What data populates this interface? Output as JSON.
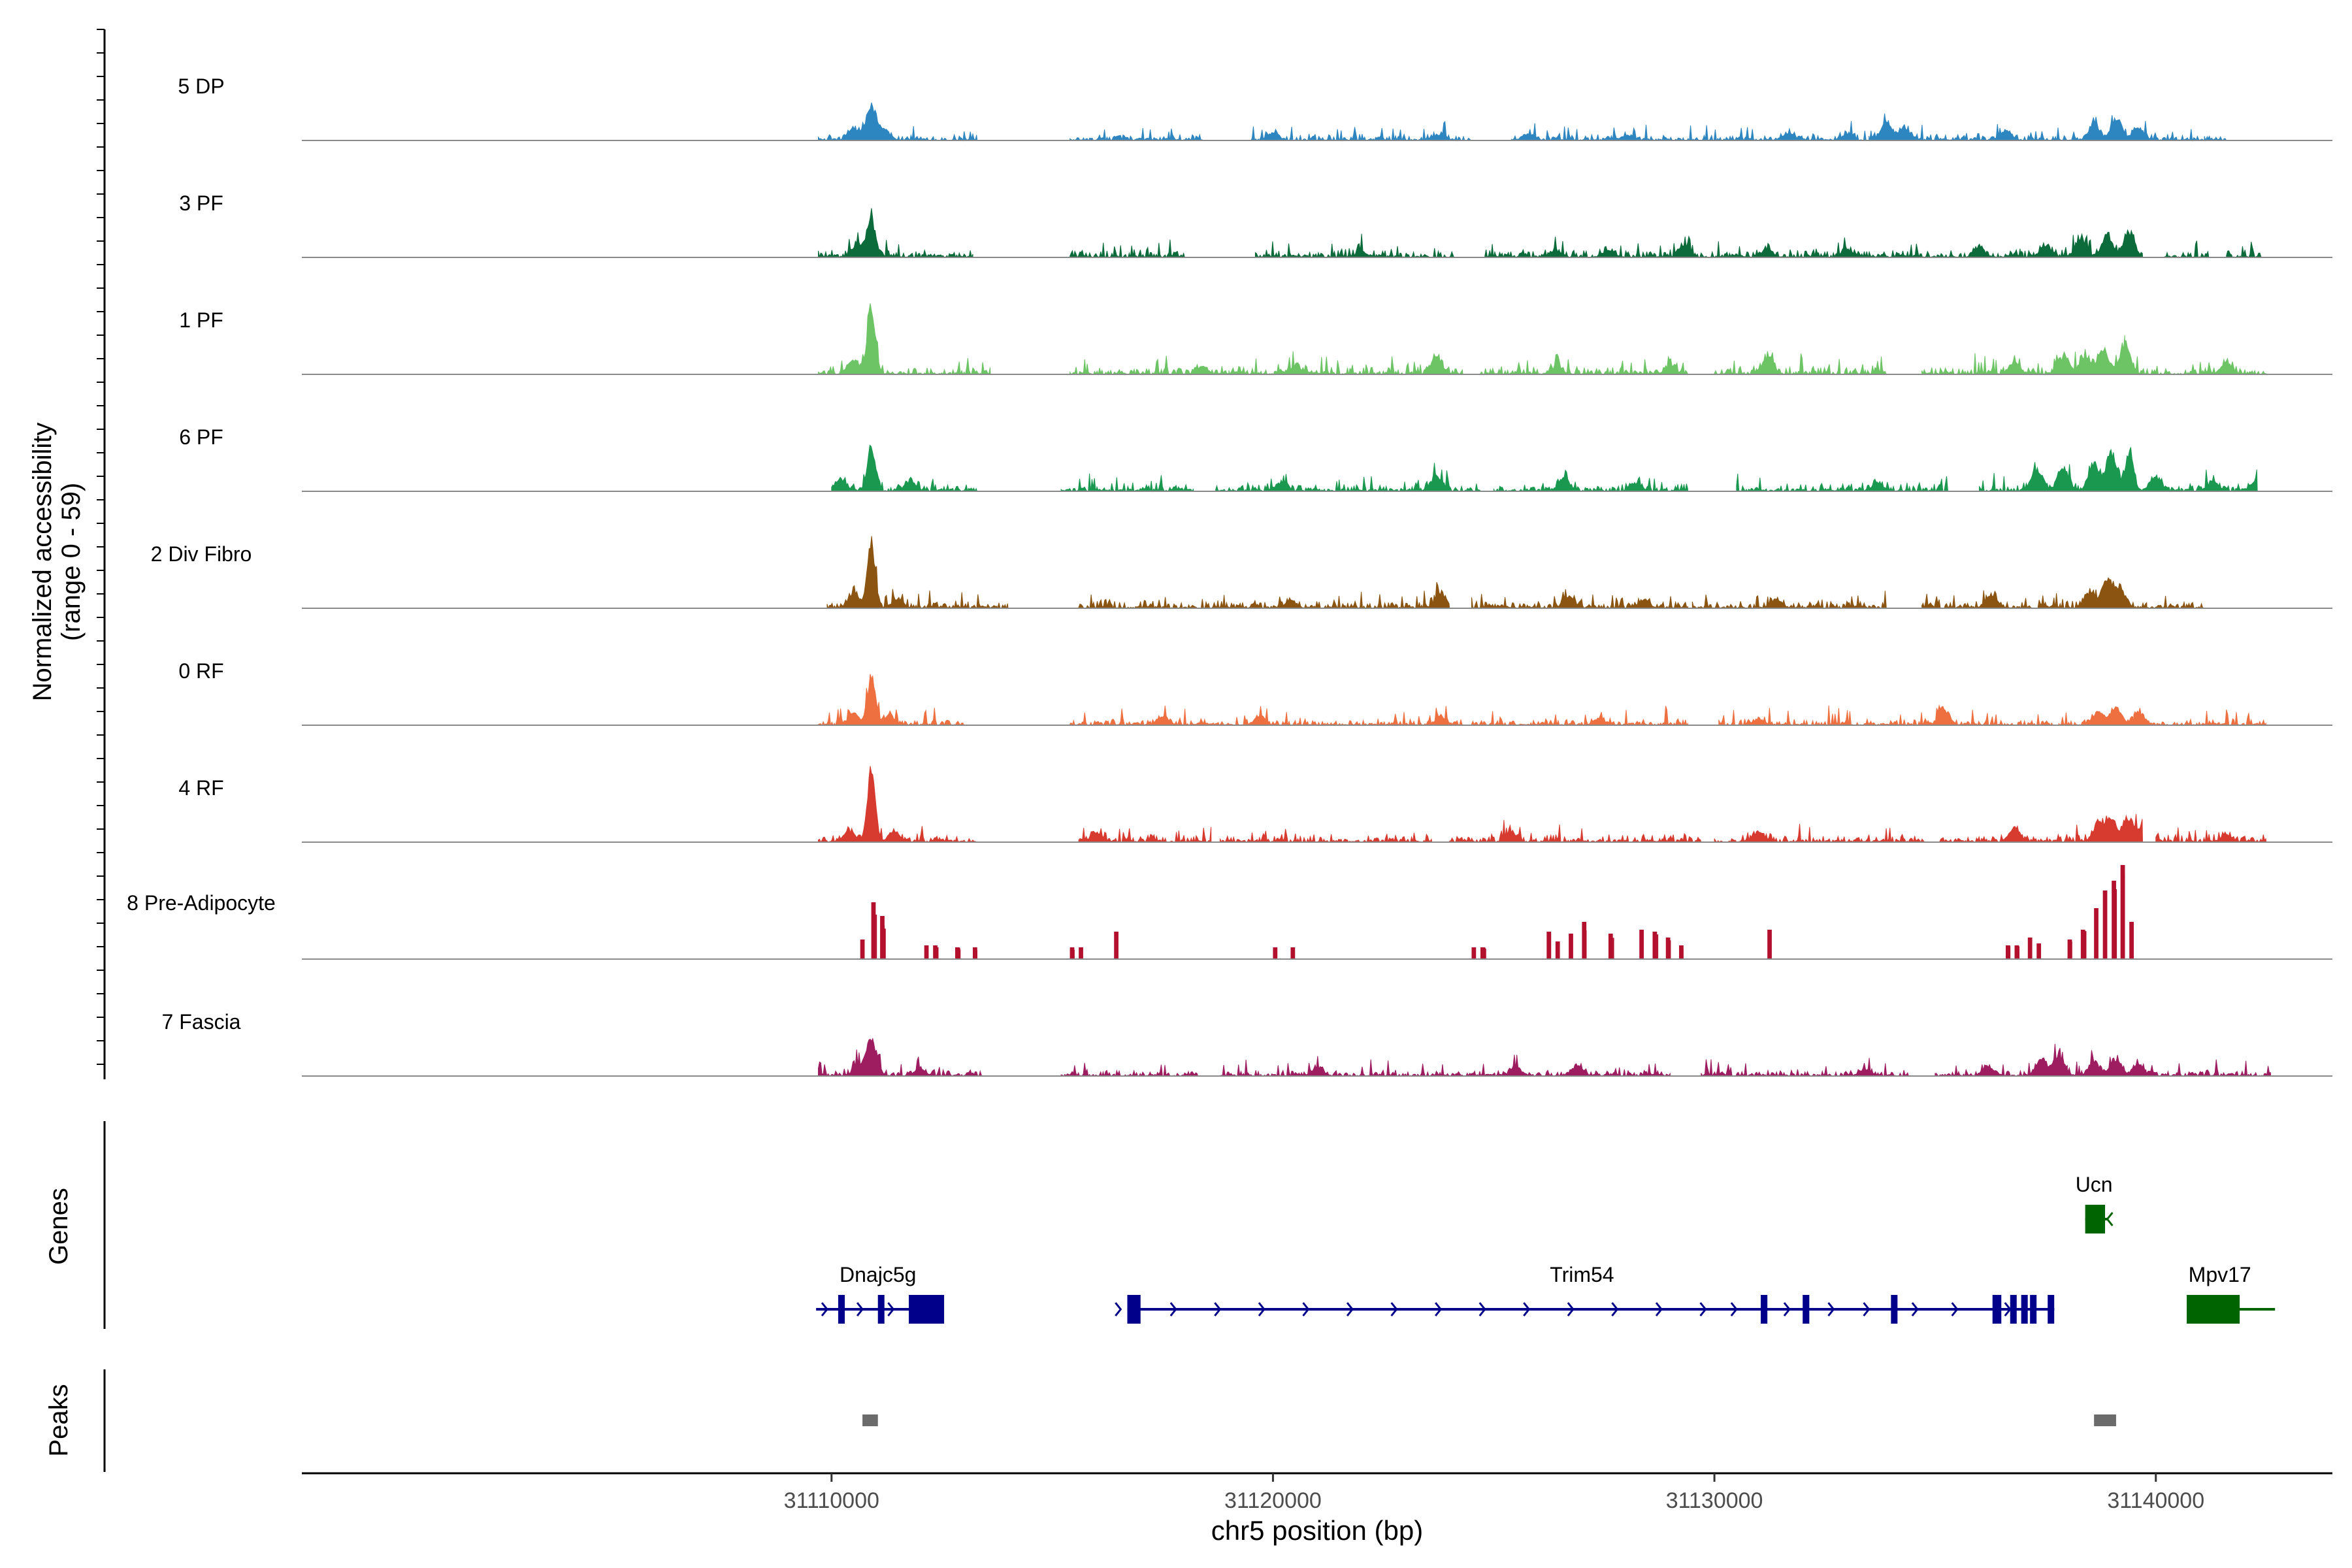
{
  "chart_data": {
    "type": "area",
    "title": "",
    "ylabel_line1": "Normalized accessibility",
    "ylabel_line2": "(range 0 - 59)",
    "xlabel": "chr5 position (bp)",
    "xlim": [
      31098000,
      31144000
    ],
    "ylim": [
      0,
      59
    ],
    "x_ticks": [
      31110000,
      31120000,
      31130000,
      31140000
    ],
    "x_tick_labels": [
      "31110000",
      "31120000",
      "31130000",
      "31140000"
    ],
    "genes_label": "Genes",
    "peaks_label": "Peaks",
    "series": [
      {
        "name": "5 DP",
        "color": "#2E86C1",
        "ranges": [
          [
            31109700,
            31113300
          ],
          [
            31115400,
            31118400
          ],
          [
            31119500,
            31124500
          ],
          [
            31125400,
            31134500
          ],
          [
            31133500,
            31138000
          ],
          [
            31138000,
            31141400
          ],
          [
            31141100,
            31141600
          ]
        ],
        "peaks": [
          [
            31110900,
            34
          ],
          [
            31110500,
            12
          ],
          [
            31111200,
            10
          ],
          [
            31133900,
            18
          ],
          [
            31134300,
            12
          ],
          [
            31136600,
            11
          ],
          [
            31138600,
            17
          ],
          [
            31139100,
            22
          ],
          [
            31139600,
            14
          ],
          [
            31120000,
            8
          ],
          [
            31125800,
            7
          ],
          [
            31131700,
            7
          ],
          [
            31133000,
            6
          ],
          [
            31123800,
            5
          ],
          [
            31128000,
            5
          ]
        ],
        "base": 4
      },
      {
        "name": "3 PF",
        "color": "#0B6B3A",
        "ranges": [
          [
            31109700,
            31113200
          ],
          [
            31115400,
            31118000
          ],
          [
            31119600,
            31124100
          ],
          [
            31124800,
            31134600
          ],
          [
            31134100,
            31137000
          ],
          [
            31136700,
            31139700
          ],
          [
            31140200,
            31141200
          ],
          [
            31141600,
            31142400
          ]
        ],
        "peaks": [
          [
            31110900,
            42
          ],
          [
            31110600,
            14
          ],
          [
            31129300,
            12
          ],
          [
            31133000,
            9
          ],
          [
            31136000,
            11
          ],
          [
            31137500,
            12
          ],
          [
            31138300,
            18
          ],
          [
            31138900,
            22
          ],
          [
            31139400,
            26
          ],
          [
            31131200,
            8
          ],
          [
            31126400,
            7
          ],
          [
            31122000,
            6
          ],
          [
            31127600,
            7
          ]
        ],
        "base": 5
      },
      {
        "name": "1 PF",
        "color": "#6CC465",
        "ranges": [
          [
            31109700,
            31113600
          ],
          [
            31115400,
            31119300
          ],
          [
            31119000,
            31124300
          ],
          [
            31124700,
            31129400
          ],
          [
            31130000,
            31133900
          ],
          [
            31134700,
            31137000
          ],
          [
            31137000,
            31139300
          ],
          [
            31139300,
            31142500
          ]
        ],
        "peaks": [
          [
            31110900,
            70
          ],
          [
            31110500,
            14
          ],
          [
            31123700,
            18
          ],
          [
            31131200,
            18
          ],
          [
            31136800,
            12
          ],
          [
            31137900,
            16
          ],
          [
            31138400,
            18
          ],
          [
            31138800,
            26
          ],
          [
            31139300,
            32
          ],
          [
            31141600,
            12
          ],
          [
            31118400,
            8
          ],
          [
            31120500,
            8
          ],
          [
            31126400,
            7
          ],
          [
            31129000,
            9
          ],
          [
            31134500,
            7
          ]
        ],
        "base": 5
      },
      {
        "name": "6 PF",
        "color": "#1A9850",
        "ranges": [
          [
            31110000,
            31113300
          ],
          [
            31115200,
            31118200
          ],
          [
            31118700,
            31124700
          ],
          [
            31125000,
            31129400
          ],
          [
            31130500,
            31135300
          ],
          [
            31136000,
            31139000
          ],
          [
            31138900,
            31142300
          ]
        ],
        "peaks": [
          [
            31110900,
            48
          ],
          [
            31110200,
            12
          ],
          [
            31111800,
            10
          ],
          [
            31123700,
            16
          ],
          [
            31126600,
            14
          ],
          [
            31128200,
            9
          ],
          [
            31137300,
            22
          ],
          [
            31137900,
            26
          ],
          [
            31138600,
            30
          ],
          [
            31139000,
            40
          ],
          [
            31139400,
            42
          ],
          [
            31140000,
            14
          ],
          [
            31141300,
            10
          ],
          [
            31142300,
            12
          ],
          [
            31120200,
            8
          ],
          [
            31133700,
            9
          ]
        ],
        "base": 5
      },
      {
        "name": "2 Div Fibro",
        "color": "#8B5410",
        "ranges": [
          [
            31109900,
            31114000
          ],
          [
            31115600,
            31118600
          ],
          [
            31118500,
            31124000
          ],
          [
            31124500,
            31129400
          ],
          [
            31129500,
            31133900
          ],
          [
            31134700,
            31137300
          ],
          [
            31137300,
            31139800
          ],
          [
            31139800,
            31141100
          ]
        ],
        "peaks": [
          [
            31110900,
            70
          ],
          [
            31110500,
            14
          ],
          [
            31111500,
            10
          ],
          [
            31123800,
            16
          ],
          [
            31126700,
            12
          ],
          [
            31128400,
            8
          ],
          [
            31131400,
            9
          ],
          [
            31136300,
            12
          ],
          [
            31138500,
            16
          ],
          [
            31138900,
            30
          ],
          [
            31139200,
            20
          ],
          [
            31120400,
            8
          ],
          [
            31114400,
            6
          ]
        ],
        "base": 5
      },
      {
        "name": "0 RF",
        "color": "#EE7040",
        "ranges": [
          [
            31109700,
            31113000
          ],
          [
            31115400,
            31119300
          ],
          [
            31119300,
            31124300
          ],
          [
            31124500,
            31129400
          ],
          [
            31130100,
            31134900
          ],
          [
            31134700,
            31137700
          ],
          [
            31137800,
            31139500
          ],
          [
            31139500,
            31142500
          ]
        ],
        "peaks": [
          [
            31110900,
            52
          ],
          [
            31110500,
            12
          ],
          [
            31111300,
            10
          ],
          [
            31117500,
            9
          ],
          [
            31119700,
            9
          ],
          [
            31135200,
            16
          ],
          [
            31138700,
            14
          ],
          [
            31139100,
            18
          ],
          [
            31139600,
            14
          ],
          [
            31123800,
            8
          ],
          [
            31127400,
            7
          ],
          [
            31131000,
            6
          ]
        ],
        "base": 4
      },
      {
        "name": "4 RF",
        "color": "#D73A2E",
        "ranges": [
          [
            31109700,
            31113300
          ],
          [
            31115600,
            31118600
          ],
          [
            31118800,
            31123600
          ],
          [
            31124000,
            31129700
          ],
          [
            31130000,
            31134800
          ],
          [
            31135100,
            31139700
          ],
          [
            31140000,
            31142500
          ]
        ],
        "peaks": [
          [
            31110900,
            76
          ],
          [
            31110400,
            12
          ],
          [
            31111400,
            10
          ],
          [
            31116000,
            10
          ],
          [
            31125400,
            9
          ],
          [
            31131000,
            10
          ],
          [
            31136800,
            14
          ],
          [
            31138700,
            20
          ],
          [
            31139000,
            22
          ],
          [
            31139400,
            24
          ],
          [
            31139800,
            18
          ],
          [
            31141600,
            8
          ]
        ],
        "base": 5
      },
      {
        "name": "8 Pre-Adipocyte",
        "color": "#B3102E",
        "ranges": [],
        "blocks": [
          [
            31110650,
            31110750,
            20
          ],
          [
            31110900,
            31111000,
            58
          ],
          [
            31111100,
            31111200,
            44
          ],
          [
            31112100,
            31112200,
            14
          ],
          [
            31112300,
            31112400,
            14
          ],
          [
            31112800,
            31112900,
            12
          ],
          [
            31113200,
            31113300,
            12
          ],
          [
            31115400,
            31115500,
            12
          ],
          [
            31115600,
            31115700,
            12
          ],
          [
            31116400,
            31116500,
            28
          ],
          [
            31120000,
            31120100,
            12
          ],
          [
            31120400,
            31120500,
            12
          ],
          [
            31124500,
            31124600,
            12
          ],
          [
            31124700,
            31124800,
            12
          ],
          [
            31126200,
            31126300,
            28
          ],
          [
            31126400,
            31126500,
            18
          ],
          [
            31126700,
            31126800,
            26
          ],
          [
            31127000,
            31127100,
            38
          ],
          [
            31127600,
            31127700,
            26
          ],
          [
            31128300,
            31128400,
            30
          ],
          [
            31128600,
            31128700,
            28
          ],
          [
            31128900,
            31129000,
            22
          ],
          [
            31129200,
            31129300,
            14
          ],
          [
            31131200,
            31131300,
            30
          ],
          [
            31136600,
            31136700,
            14
          ],
          [
            31136800,
            31136900,
            14
          ],
          [
            31137100,
            31137200,
            22
          ],
          [
            31137300,
            31137400,
            16
          ],
          [
            31138000,
            31138100,
            20
          ],
          [
            31138300,
            31138400,
            30
          ],
          [
            31138600,
            31138700,
            52
          ],
          [
            31138800,
            31138900,
            70
          ],
          [
            31139000,
            31139100,
            80
          ],
          [
            31139200,
            31139300,
            96
          ],
          [
            31139400,
            31139500,
            38
          ]
        ],
        "base": 0
      },
      {
        "name": "7 Fascia",
        "color": "#9E1C60",
        "ranges": [
          [
            31109700,
            31113400
          ],
          [
            31115200,
            31118300
          ],
          [
            31118800,
            31124600
          ],
          [
            31124600,
            31129000
          ],
          [
            31129700,
            31134400
          ],
          [
            31135000,
            31138000
          ],
          [
            31137900,
            31139800
          ],
          [
            31139800,
            31142600
          ]
        ],
        "peaks": [
          [
            31110900,
            38
          ],
          [
            31110600,
            10
          ],
          [
            31112000,
            8
          ],
          [
            31125500,
            9
          ],
          [
            31126900,
            12
          ],
          [
            31129400,
            9
          ],
          [
            31136200,
            10
          ],
          [
            31137400,
            18
          ],
          [
            31137800,
            20
          ],
          [
            31138600,
            14
          ],
          [
            31139100,
            18
          ],
          [
            31139600,
            12
          ],
          [
            31121000,
            8
          ],
          [
            31133400,
            7
          ]
        ],
        "base": 4
      }
    ]
  },
  "genes": [
    {
      "name": "Dnajc5g",
      "color": "#00008B",
      "start": 31109650,
      "end": 31112500,
      "row": 2,
      "exons": [
        [
          31110150,
          31110300
        ],
        [
          31111050,
          31111150
        ],
        [
          31111750,
          31112550
        ]
      ],
      "arrows": [
        31109900,
        31110700,
        31111400
      ],
      "arrow_dir": "right",
      "label_x": 31111050
    },
    {
      "name": "Trim54",
      "color": "#00008B",
      "start": 31116700,
      "end": 31137700,
      "row": 2,
      "exons": [
        [
          31116700,
          31117000
        ],
        [
          31131050,
          31131200
        ],
        [
          31132000,
          31132150
        ],
        [
          31134000,
          31134100
        ],
        [
          31136300,
          31136500
        ],
        [
          31136700,
          31136800
        ],
        [
          31136950,
          31137050
        ],
        [
          31137150,
          31137250
        ],
        [
          31137550,
          31137650
        ]
      ],
      "arrows": [
        31116550,
        31117800,
        31118800,
        31119800,
        31120800,
        31121800,
        31122800,
        31123800,
        31124800,
        31125800,
        31126800,
        31127800,
        31128800,
        31129800,
        31130500,
        31131700,
        31132700,
        31133500,
        31134600,
        31135500,
        31136700
      ],
      "arrow_dir": "right",
      "label_x": 31127000
    },
    {
      "name": "Ucn",
      "color": "#006400",
      "start": 31138400,
      "end": 31138900,
      "row": 1,
      "exons": [
        [
          31138400,
          31138850
        ]
      ],
      "arrows": [
        31138900
      ],
      "arrow_dir": "left",
      "label_x": 31138600
    },
    {
      "name": "Mpv17",
      "color": "#006400",
      "start": 31140700,
      "end": 31142700,
      "row": 2,
      "exons": [
        [
          31140700,
          31141900
        ]
      ],
      "arrows": [],
      "arrow_dir": "left",
      "label_x": 31141450
    }
  ],
  "peak_regions": [
    [
      31110700,
      31111050
    ],
    [
      31138600,
      31139100
    ]
  ]
}
